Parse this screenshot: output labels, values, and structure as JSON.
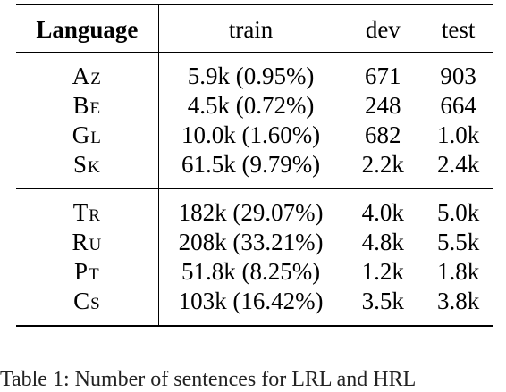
{
  "table": {
    "headers": [
      "Language",
      "train",
      "dev",
      "test"
    ],
    "groups": [
      {
        "rows": [
          {
            "lang": "Az",
            "train": "5.9k (0.95%)",
            "dev": "671",
            "test": "903"
          },
          {
            "lang": "Be",
            "train": "4.5k (0.72%)",
            "dev": "248",
            "test": "664"
          },
          {
            "lang": "Gl",
            "train": "10.0k (1.60%)",
            "dev": "682",
            "test": "1.0k"
          },
          {
            "lang": "Sk",
            "train": "61.5k (9.79%)",
            "dev": "2.2k",
            "test": "2.4k"
          }
        ]
      },
      {
        "rows": [
          {
            "lang": "Tr",
            "train": "182k (29.07%)",
            "dev": "4.0k",
            "test": "5.0k"
          },
          {
            "lang": "Ru",
            "train": "208k (33.21%)",
            "dev": "4.8k",
            "test": "5.5k"
          },
          {
            "lang": "Pt",
            "train": "51.8k (8.25%)",
            "dev": "1.2k",
            "test": "1.8k"
          },
          {
            "lang": "Cs",
            "train": "103k (16.42%)",
            "dev": "3.5k",
            "test": "3.8k"
          }
        ]
      }
    ]
  },
  "caption": "Table 1: Number of sentences for LRL and HRL"
}
